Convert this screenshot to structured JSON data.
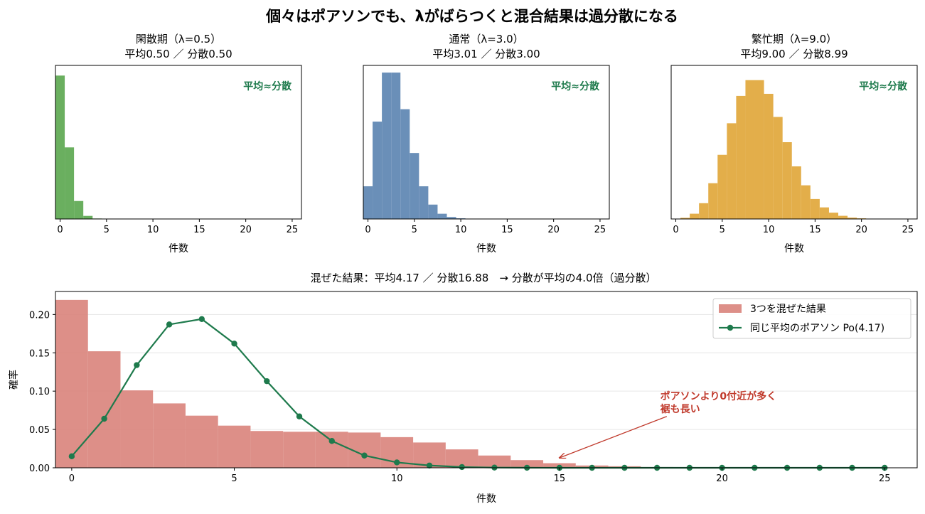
{
  "figure": {
    "suptitle": "個々はポアソンでも、λがばらつくと混合結果は過分散になる"
  },
  "chart_data": [
    {
      "type": "bar",
      "id": "quiet",
      "title_line1": "閑散期（λ=0.5）",
      "title_line2": "平均0.50 ／ 分散0.50",
      "xlabel": "件数",
      "ylabel": "",
      "note": "平均≈分散",
      "color": "#6aaf5f",
      "note_color": "#1e7a4c",
      "xlim": [
        -0.5,
        26
      ],
      "ylim": [
        0,
        0.65
      ],
      "xticks": [
        "0",
        "5",
        "10",
        "15",
        "20",
        "25"
      ],
      "x": [
        0,
        1,
        2,
        3,
        4,
        5,
        6
      ],
      "values": [
        0.607,
        0.303,
        0.076,
        0.013,
        0.002,
        0.0002,
        0.0
      ]
    },
    {
      "type": "bar",
      "id": "normal",
      "title_line1": "通常（λ=3.0）",
      "title_line2": "平均3.01 ／ 分散3.00",
      "xlabel": "件数",
      "ylabel": "",
      "note": "平均≈分散",
      "color": "#6a8fb8",
      "note_color": "#1e7a4c",
      "xlim": [
        -0.5,
        26
      ],
      "ylim": [
        0,
        0.235
      ],
      "xticks": [
        "0",
        "5",
        "10",
        "15",
        "20",
        "25"
      ],
      "x": [
        0,
        1,
        2,
        3,
        4,
        5,
        6,
        7,
        8,
        9,
        10,
        11,
        12
      ],
      "values": [
        0.05,
        0.149,
        0.224,
        0.224,
        0.168,
        0.101,
        0.05,
        0.022,
        0.008,
        0.003,
        0.001,
        0.0002,
        0.0
      ]
    },
    {
      "type": "bar",
      "id": "busy",
      "title_line1": "繁忙期（λ=9.0）",
      "title_line2": "平均9.00 ／ 分散8.99",
      "xlabel": "件数",
      "ylabel": "",
      "note": "平均≈分散",
      "color": "#e3ae4a",
      "note_color": "#1e7a4c",
      "xlim": [
        -0.5,
        26
      ],
      "ylim": [
        0,
        0.146
      ],
      "xticks": [
        "0",
        "5",
        "10",
        "15",
        "20",
        "25"
      ],
      "x": [
        0,
        1,
        2,
        3,
        4,
        5,
        6,
        7,
        8,
        9,
        10,
        11,
        12,
        13,
        14,
        15,
        16,
        17,
        18,
        19,
        20,
        21,
        22
      ],
      "values": [
        0.0001,
        0.0011,
        0.005,
        0.015,
        0.034,
        0.061,
        0.091,
        0.117,
        0.132,
        0.132,
        0.119,
        0.097,
        0.073,
        0.05,
        0.032,
        0.019,
        0.011,
        0.006,
        0.003,
        0.0013,
        0.0006,
        0.0003,
        0.0001
      ]
    },
    {
      "type": "bar",
      "id": "mixed",
      "title": "混ぜた結果：平均4.17 ／ 分散16.88　→ 分散が平均の4.0倍（過分散）",
      "xlabel": "件数",
      "ylabel": "確率",
      "xlim": [
        -0.5,
        26
      ],
      "ylim": [
        0,
        0.23
      ],
      "xticks": [
        "0",
        "5",
        "10",
        "15",
        "20",
        "25"
      ],
      "yticks": [
        "0.00",
        "0.05",
        "0.10",
        "0.15",
        "0.20"
      ],
      "grid": true,
      "legend_position": "upper right",
      "series": [
        {
          "name": "3つを混ぜた結果",
          "kind": "bar",
          "color": "#d9837b",
          "x": [
            0,
            1,
            2,
            3,
            4,
            5,
            6,
            7,
            8,
            9,
            10,
            11,
            12,
            13,
            14,
            15,
            16,
            17,
            18,
            19,
            20,
            21,
            22,
            23,
            24,
            25
          ],
          "values": [
            0.219,
            0.152,
            0.101,
            0.084,
            0.068,
            0.055,
            0.048,
            0.047,
            0.047,
            0.046,
            0.04,
            0.033,
            0.024,
            0.016,
            0.01,
            0.006,
            0.003,
            0.002,
            0.001,
            0.0004,
            0.0002,
            0.0001,
            0.0,
            0.0,
            0.0,
            0.0
          ]
        },
        {
          "name": "同じ平均のポアソン Po(4.17)",
          "kind": "line",
          "color": "#1e7a4c",
          "x": [
            0,
            1,
            2,
            3,
            4,
            5,
            6,
            7,
            8,
            9,
            10,
            11,
            12,
            13,
            14,
            15,
            16,
            17,
            18,
            19,
            20,
            21,
            22,
            23,
            24,
            25
          ],
          "values": [
            0.015,
            0.064,
            0.134,
            0.187,
            0.194,
            0.162,
            0.113,
            0.067,
            0.035,
            0.016,
            0.007,
            0.003,
            0.001,
            0.0003,
            0.0001,
            0.0,
            0.0,
            0.0,
            0.0,
            0.0,
            0.0,
            0.0,
            0.0,
            0.0,
            0.0,
            0.0
          ]
        }
      ],
      "annotation": {
        "line1": "ポアソンより0付近が多く",
        "line2": "裾も長い",
        "color": "#c0392b",
        "text_at": [
          18.1,
          0.089
        ],
        "arrow_tail": [
          18.3,
          0.067
        ],
        "arrow_head": [
          15.0,
          0.013
        ]
      }
    }
  ]
}
